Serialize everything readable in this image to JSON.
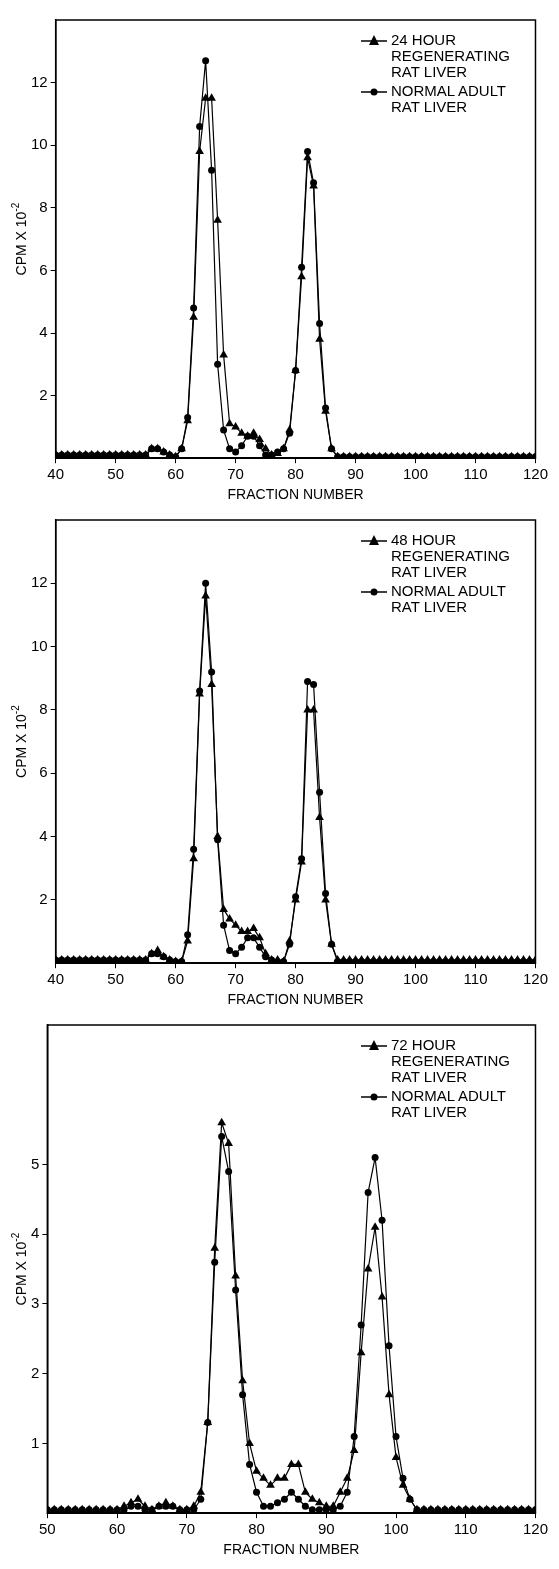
{
  "chart_data": [
    {
      "type": "line",
      "xlabel": "FRACTION NUMBER",
      "ylabel": "CPM X 10$^{-2}$",
      "xlim": [
        40,
        120
      ],
      "xticks": [
        40,
        50,
        60,
        70,
        80,
        90,
        100,
        110,
        120
      ],
      "ylim": [
        0,
        14
      ],
      "yticks": [
        2,
        4,
        6,
        8,
        10,
        12
      ],
      "legend": "top right",
      "x": [
        40,
        41,
        42,
        43,
        44,
        45,
        46,
        47,
        48,
        49,
        50,
        51,
        52,
        53,
        54,
        55,
        56,
        57,
        58,
        59,
        60,
        61,
        62,
        63,
        64,
        65,
        66,
        67,
        68,
        69,
        70,
        71,
        72,
        73,
        74,
        75,
        76,
        77,
        78,
        79,
        80,
        81,
        82,
        83,
        84,
        85,
        86,
        87,
        88,
        89,
        90,
        91,
        92,
        93,
        94,
        95,
        96,
        97,
        98,
        99,
        100,
        101,
        102,
        103,
        104,
        105,
        106,
        107,
        108,
        109,
        110,
        111,
        112,
        113,
        114,
        115,
        116,
        117,
        118,
        119,
        120
      ],
      "series": [
        {
          "name": "24 HOUR REGENERATING RAT LIVER",
          "color": "#000000",
          "marker": "triangle",
          "values": [
            0.1,
            0.1,
            0.1,
            0.1,
            0.1,
            0.1,
            0.1,
            0.1,
            0.1,
            0.1,
            0.1,
            0.1,
            0.1,
            0.1,
            0.1,
            0.1,
            0.3,
            0.3,
            0.2,
            0.1,
            0.05,
            0.3,
            1.2,
            4.5,
            9.8,
            11.5,
            11.5,
            7.6,
            3.3,
            1.1,
            1.0,
            0.8,
            0.7,
            0.8,
            0.6,
            0.3,
            0.1,
            0.15,
            0.3,
            0.9,
            2.8,
            5.8,
            9.6,
            8.7,
            3.8,
            1.5,
            0.3,
            0.05,
            0.05,
            0.05,
            0.05,
            0.05,
            0.05,
            0.05,
            0.05,
            0.05,
            0.05,
            0.05,
            0.05,
            0.05,
            0.05,
            0.05,
            0.05,
            0.05,
            0.05,
            0.05,
            0.05,
            0.05,
            0.05,
            0.05,
            0.05,
            0.05,
            0.05,
            0.05,
            0.05,
            0.05,
            0.05,
            0.05,
            0.05,
            0.05,
            0.05
          ]
        },
        {
          "name": "NORMAL ADULT RAT LIVER",
          "color": "#000000",
          "marker": "circle",
          "values": [
            0.1,
            0.1,
            0.1,
            0.1,
            0.1,
            0.1,
            0.1,
            0.1,
            0.1,
            0.1,
            0.1,
            0.1,
            0.1,
            0.1,
            0.1,
            0.1,
            0.3,
            0.3,
            0.2,
            0.1,
            0.05,
            0.3,
            1.3,
            4.8,
            10.6,
            12.7,
            9.2,
            3.0,
            0.9,
            0.3,
            0.2,
            0.4,
            0.7,
            0.7,
            0.4,
            0.1,
            0.1,
            0.2,
            0.3,
            0.8,
            2.8,
            6.1,
            9.8,
            8.8,
            4.3,
            1.6,
            0.3,
            0.05,
            0.05,
            0.05,
            0.05,
            0.05,
            0.05,
            0.05,
            0.05,
            0.05,
            0.05,
            0.05,
            0.05,
            0.05,
            0.05,
            0.05,
            0.05,
            0.05,
            0.05,
            0.05,
            0.05,
            0.05,
            0.05,
            0.05,
            0.05,
            0.05,
            0.05,
            0.05,
            0.05,
            0.05,
            0.05,
            0.05,
            0.05,
            0.05,
            0.05
          ]
        }
      ]
    },
    {
      "type": "line",
      "xlabel": "FRACTION NUMBER",
      "ylabel": "CPM X 10$^{-2}$",
      "xlim": [
        40,
        120
      ],
      "xticks": [
        40,
        50,
        60,
        70,
        80,
        90,
        100,
        110,
        120
      ],
      "ylim": [
        0,
        14
      ],
      "yticks": [
        2,
        4,
        6,
        8,
        10,
        12
      ],
      "legend": "top right",
      "x": [
        40,
        41,
        42,
        43,
        44,
        45,
        46,
        47,
        48,
        49,
        50,
        51,
        52,
        53,
        54,
        55,
        56,
        57,
        58,
        59,
        60,
        61,
        62,
        63,
        64,
        65,
        66,
        67,
        68,
        69,
        70,
        71,
        72,
        73,
        74,
        75,
        76,
        77,
        78,
        79,
        80,
        81,
        82,
        83,
        84,
        85,
        86,
        87,
        88,
        89,
        90,
        91,
        92,
        93,
        94,
        95,
        96,
        97,
        98,
        99,
        100,
        101,
        102,
        103,
        104,
        105,
        106,
        107,
        108,
        109,
        110,
        111,
        112,
        113,
        114,
        115,
        116,
        117,
        118,
        119,
        120
      ],
      "series": [
        {
          "name": "48 HOUR REGENERATING RAT LIVER",
          "color": "#000000",
          "marker": "triangle",
          "values": [
            0.1,
            0.1,
            0.1,
            0.1,
            0.1,
            0.1,
            0.1,
            0.1,
            0.1,
            0.1,
            0.1,
            0.1,
            0.1,
            0.1,
            0.1,
            0.1,
            0.3,
            0.4,
            0.2,
            0.1,
            0.05,
            0.05,
            0.7,
            3.3,
            8.5,
            11.6,
            8.8,
            4.0,
            1.7,
            1.4,
            1.2,
            1.0,
            1.0,
            1.1,
            0.8,
            0.3,
            0.1,
            0.1,
            0.05,
            0.7,
            2.0,
            3.2,
            8.0,
            8.0,
            4.6,
            2.0,
            0.6,
            0.1,
            0.1,
            0.1,
            0.1,
            0.1,
            0.1,
            0.1,
            0.1,
            0.1,
            0.1,
            0.1,
            0.1,
            0.1,
            0.1,
            0.1,
            0.1,
            0.1,
            0.1,
            0.1,
            0.1,
            0.1,
            0.1,
            0.1,
            0.1,
            0.1,
            0.1,
            0.1,
            0.1,
            0.1,
            0.1,
            0.1,
            0.1,
            0.1,
            0.1
          ]
        },
        {
          "name": "NORMAL ADULT RAT LIVER",
          "color": "#000000",
          "marker": "circle",
          "values": [
            0.1,
            0.1,
            0.1,
            0.1,
            0.1,
            0.1,
            0.1,
            0.1,
            0.1,
            0.1,
            0.1,
            0.1,
            0.1,
            0.1,
            0.1,
            0.1,
            0.3,
            0.3,
            0.2,
            0.1,
            0.05,
            0.05,
            0.9,
            3.6,
            8.6,
            12.0,
            9.2,
            3.9,
            1.2,
            0.4,
            0.3,
            0.5,
            0.8,
            0.8,
            0.5,
            0.2,
            0.1,
            0.05,
            0.05,
            0.6,
            2.1,
            3.3,
            8.9,
            8.8,
            5.4,
            2.2,
            0.6,
            0.05,
            0.05,
            0.05,
            0.05,
            0.05,
            0.05,
            0.05,
            0.05,
            0.05,
            0.05,
            0.05,
            0.05,
            0.05,
            0.05,
            0.05,
            0.05,
            0.05,
            0.05,
            0.05,
            0.05,
            0.05,
            0.05,
            0.05,
            0.05,
            0.05,
            0.05,
            0.05,
            0.05,
            0.05,
            0.05,
            0.05,
            0.05,
            0.05,
            0.05
          ]
        }
      ]
    },
    {
      "type": "line",
      "xlabel": "FRACTION NUMBER",
      "ylabel": "CPM X 10$^{-2}$",
      "xlim": [
        50,
        120
      ],
      "xticks": [
        50,
        60,
        70,
        80,
        90,
        100,
        110,
        120
      ],
      "ylim": [
        0,
        7
      ],
      "yticks": [
        1,
        2,
        3,
        4,
        5
      ],
      "legend": "top right",
      "x": [
        50,
        51,
        52,
        53,
        54,
        55,
        56,
        57,
        58,
        59,
        60,
        61,
        62,
        63,
        64,
        65,
        66,
        67,
        68,
        69,
        70,
        71,
        72,
        73,
        74,
        75,
        76,
        77,
        78,
        79,
        80,
        81,
        82,
        83,
        84,
        85,
        86,
        87,
        88,
        89,
        90,
        91,
        92,
        93,
        94,
        95,
        96,
        97,
        98,
        99,
        100,
        101,
        102,
        103,
        104,
        105,
        106,
        107,
        108,
        109,
        110,
        111,
        112,
        113,
        114,
        115,
        116,
        117,
        118,
        119,
        120
      ],
      "series": [
        {
          "name": "72 HOUR REGENERATING RAT LIVER",
          "color": "#000000",
          "marker": "triangle",
          "values": [
            0.05,
            0.05,
            0.05,
            0.05,
            0.05,
            0.05,
            0.05,
            0.05,
            0.05,
            0.05,
            0.05,
            0.1,
            0.15,
            0.2,
            0.1,
            0.05,
            0.1,
            0.15,
            0.1,
            0.05,
            0.05,
            0.1,
            0.3,
            1.3,
            3.8,
            5.6,
            5.3,
            3.4,
            1.9,
            1.0,
            0.6,
            0.5,
            0.4,
            0.5,
            0.5,
            0.7,
            0.7,
            0.3,
            0.2,
            0.15,
            0.1,
            0.1,
            0.3,
            0.5,
            0.9,
            2.3,
            3.5,
            4.1,
            3.1,
            1.7,
            0.8,
            0.4,
            0.2,
            0.05,
            0.05,
            0.05,
            0.05,
            0.05,
            0.05,
            0.05,
            0.05,
            0.05,
            0.05,
            0.05,
            0.05,
            0.05,
            0.05,
            0.05,
            0.05,
            0.05,
            0.05
          ]
        },
        {
          "name": "NORMAL ADULT RAT LIVER",
          "color": "#000000",
          "marker": "circle",
          "values": [
            0.05,
            0.05,
            0.05,
            0.05,
            0.05,
            0.05,
            0.05,
            0.05,
            0.05,
            0.05,
            0.05,
            0.05,
            0.1,
            0.1,
            0.05,
            0.05,
            0.1,
            0.1,
            0.1,
            0.05,
            0.05,
            0.05,
            0.2,
            1.3,
            3.6,
            5.4,
            4.9,
            3.2,
            1.7,
            0.7,
            0.3,
            0.1,
            0.1,
            0.15,
            0.2,
            0.3,
            0.2,
            0.1,
            0.05,
            0.05,
            0.05,
            0.05,
            0.1,
            0.3,
            1.1,
            2.7,
            4.6,
            5.1,
            4.2,
            2.4,
            1.1,
            0.5,
            0.2,
            0.05,
            0.05,
            0.05,
            0.05,
            0.05,
            0.05,
            0.05,
            0.05,
            0.05,
            0.05,
            0.05,
            0.05,
            0.05,
            0.05,
            0.05,
            0.05,
            0.05,
            0.05
          ]
        }
      ]
    }
  ]
}
